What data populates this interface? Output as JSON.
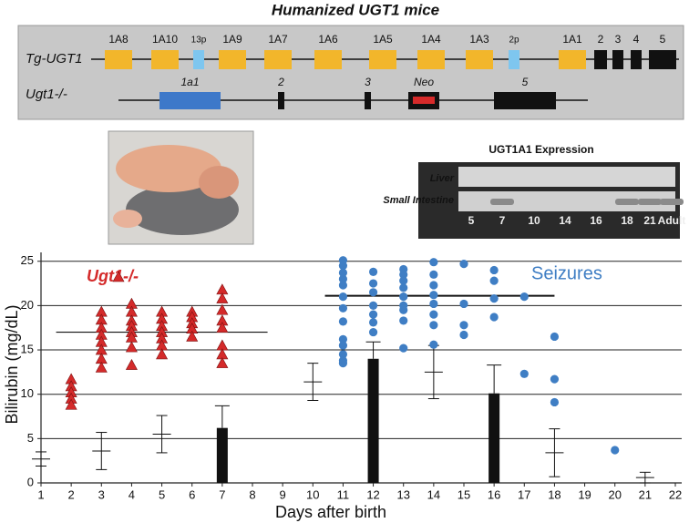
{
  "diagram": {
    "title": "Humanized UGT1 mice",
    "transgene": {
      "label": "Tg-UGT1",
      "exons": [
        "1A8",
        "1A10",
        "13p",
        "1A9",
        "1A7",
        "1A6",
        "1A5",
        "1A4",
        "1A3",
        "2p",
        "1A1",
        "2",
        "3",
        "4",
        "5"
      ]
    },
    "knockout": {
      "label": "Ugt1-/-",
      "exons": [
        "1a1",
        "2",
        "3",
        "Neo",
        "5"
      ]
    }
  },
  "blot": {
    "title": "UGT1A1 Expression",
    "rows": [
      "Liver",
      "Small Intestine"
    ],
    "lanes": [
      "5",
      "7",
      "10",
      "14",
      "16",
      "18",
      "21",
      "Adult"
    ]
  },
  "chart_data": {
    "type": "scatter",
    "x_label": "Days after birth",
    "y_label": "Bilirubin (mg/dL)",
    "xlim": [
      1,
      22
    ],
    "xticks": [
      1,
      2,
      3,
      4,
      5,
      6,
      7,
      8,
      9,
      10,
      11,
      12,
      13,
      14,
      15,
      16,
      17,
      18,
      19,
      20,
      21,
      22
    ],
    "ylim": [
      0,
      26
    ],
    "yticks": [
      0,
      5,
      10,
      15,
      20,
      25
    ],
    "grid": true,
    "series": [
      {
        "name": "Ugt1-/-",
        "color": "#d42a2a",
        "marker": "triangle",
        "x": [
          2,
          2,
          2,
          2,
          2,
          3,
          3,
          3,
          3,
          3,
          3,
          3,
          3,
          4,
          4,
          4,
          4,
          4,
          4,
          4,
          4,
          5,
          5,
          5,
          5,
          5,
          5,
          5,
          6,
          6,
          6,
          6,
          6,
          7,
          7,
          7,
          7,
          7,
          7,
          7,
          7
        ],
        "values": [
          11.7,
          10.9,
          10.2,
          9.5,
          8.8,
          19.3,
          18.4,
          17.5,
          16.7,
          15.9,
          15.0,
          14.0,
          13.0,
          20.2,
          19.3,
          18.3,
          17.7,
          17.0,
          16.4,
          15.3,
          13.3,
          19.3,
          18.5,
          17.7,
          17.0,
          16.3,
          15.5,
          14.5,
          19.3,
          18.7,
          18.0,
          17.4,
          16.5,
          21.8,
          20.8,
          19.5,
          18.3,
          17.5,
          15.5,
          14.5,
          13.5
        ]
      },
      {
        "name": "Seizures",
        "color": "#3f7ec4",
        "marker": "circle",
        "x": [
          11,
          11,
          11,
          11,
          11,
          11,
          11,
          11,
          11,
          11,
          11,
          11,
          11,
          12,
          12,
          12,
          12,
          12,
          12,
          12,
          13,
          13,
          13,
          13,
          13,
          13,
          13,
          13,
          13,
          14,
          14,
          14,
          14,
          14,
          14,
          14,
          14,
          15,
          15,
          15,
          15,
          16,
          16,
          16,
          16,
          17,
          17,
          18,
          18,
          18,
          20
        ],
        "values": [
          25.1,
          24.5,
          23.7,
          23.0,
          22.3,
          21.0,
          19.7,
          18.2,
          16.2,
          15.5,
          14.5,
          13.8,
          13.5,
          23.8,
          22.5,
          21.5,
          20.0,
          19.0,
          18.1,
          17.0,
          24.1,
          23.5,
          22.8,
          22.0,
          21.0,
          20.0,
          19.5,
          18.3,
          15.2,
          24.9,
          23.5,
          22.3,
          21.2,
          20.2,
          19.0,
          17.8,
          15.6,
          24.7,
          20.2,
          17.8,
          16.7,
          24.0,
          22.8,
          20.8,
          18.7,
          21.0,
          12.3,
          16.5,
          11.7,
          9.1,
          3.7
        ]
      }
    ],
    "mean_lines": [
      {
        "x": [
          1.5,
          8.5
        ],
        "value": 17.0
      },
      {
        "x": [
          10.4,
          18.0
        ],
        "value": 21.1
      }
    ],
    "means": {
      "x": [
        1,
        3,
        5,
        10,
        14,
        18,
        21
      ],
      "values": [
        2.7,
        3.6,
        5.5,
        11.4,
        12.5,
        3.4,
        0.6
      ],
      "errors": [
        0.8,
        2.1,
        2.1,
        2.1,
        3.0,
        2.7,
        0.6
      ]
    },
    "bars": {
      "color": "#111111",
      "x": [
        7,
        12,
        16
      ],
      "values": [
        6.2,
        14.0,
        10.1
      ],
      "errors": [
        2.5,
        1.9,
        3.2
      ]
    }
  }
}
